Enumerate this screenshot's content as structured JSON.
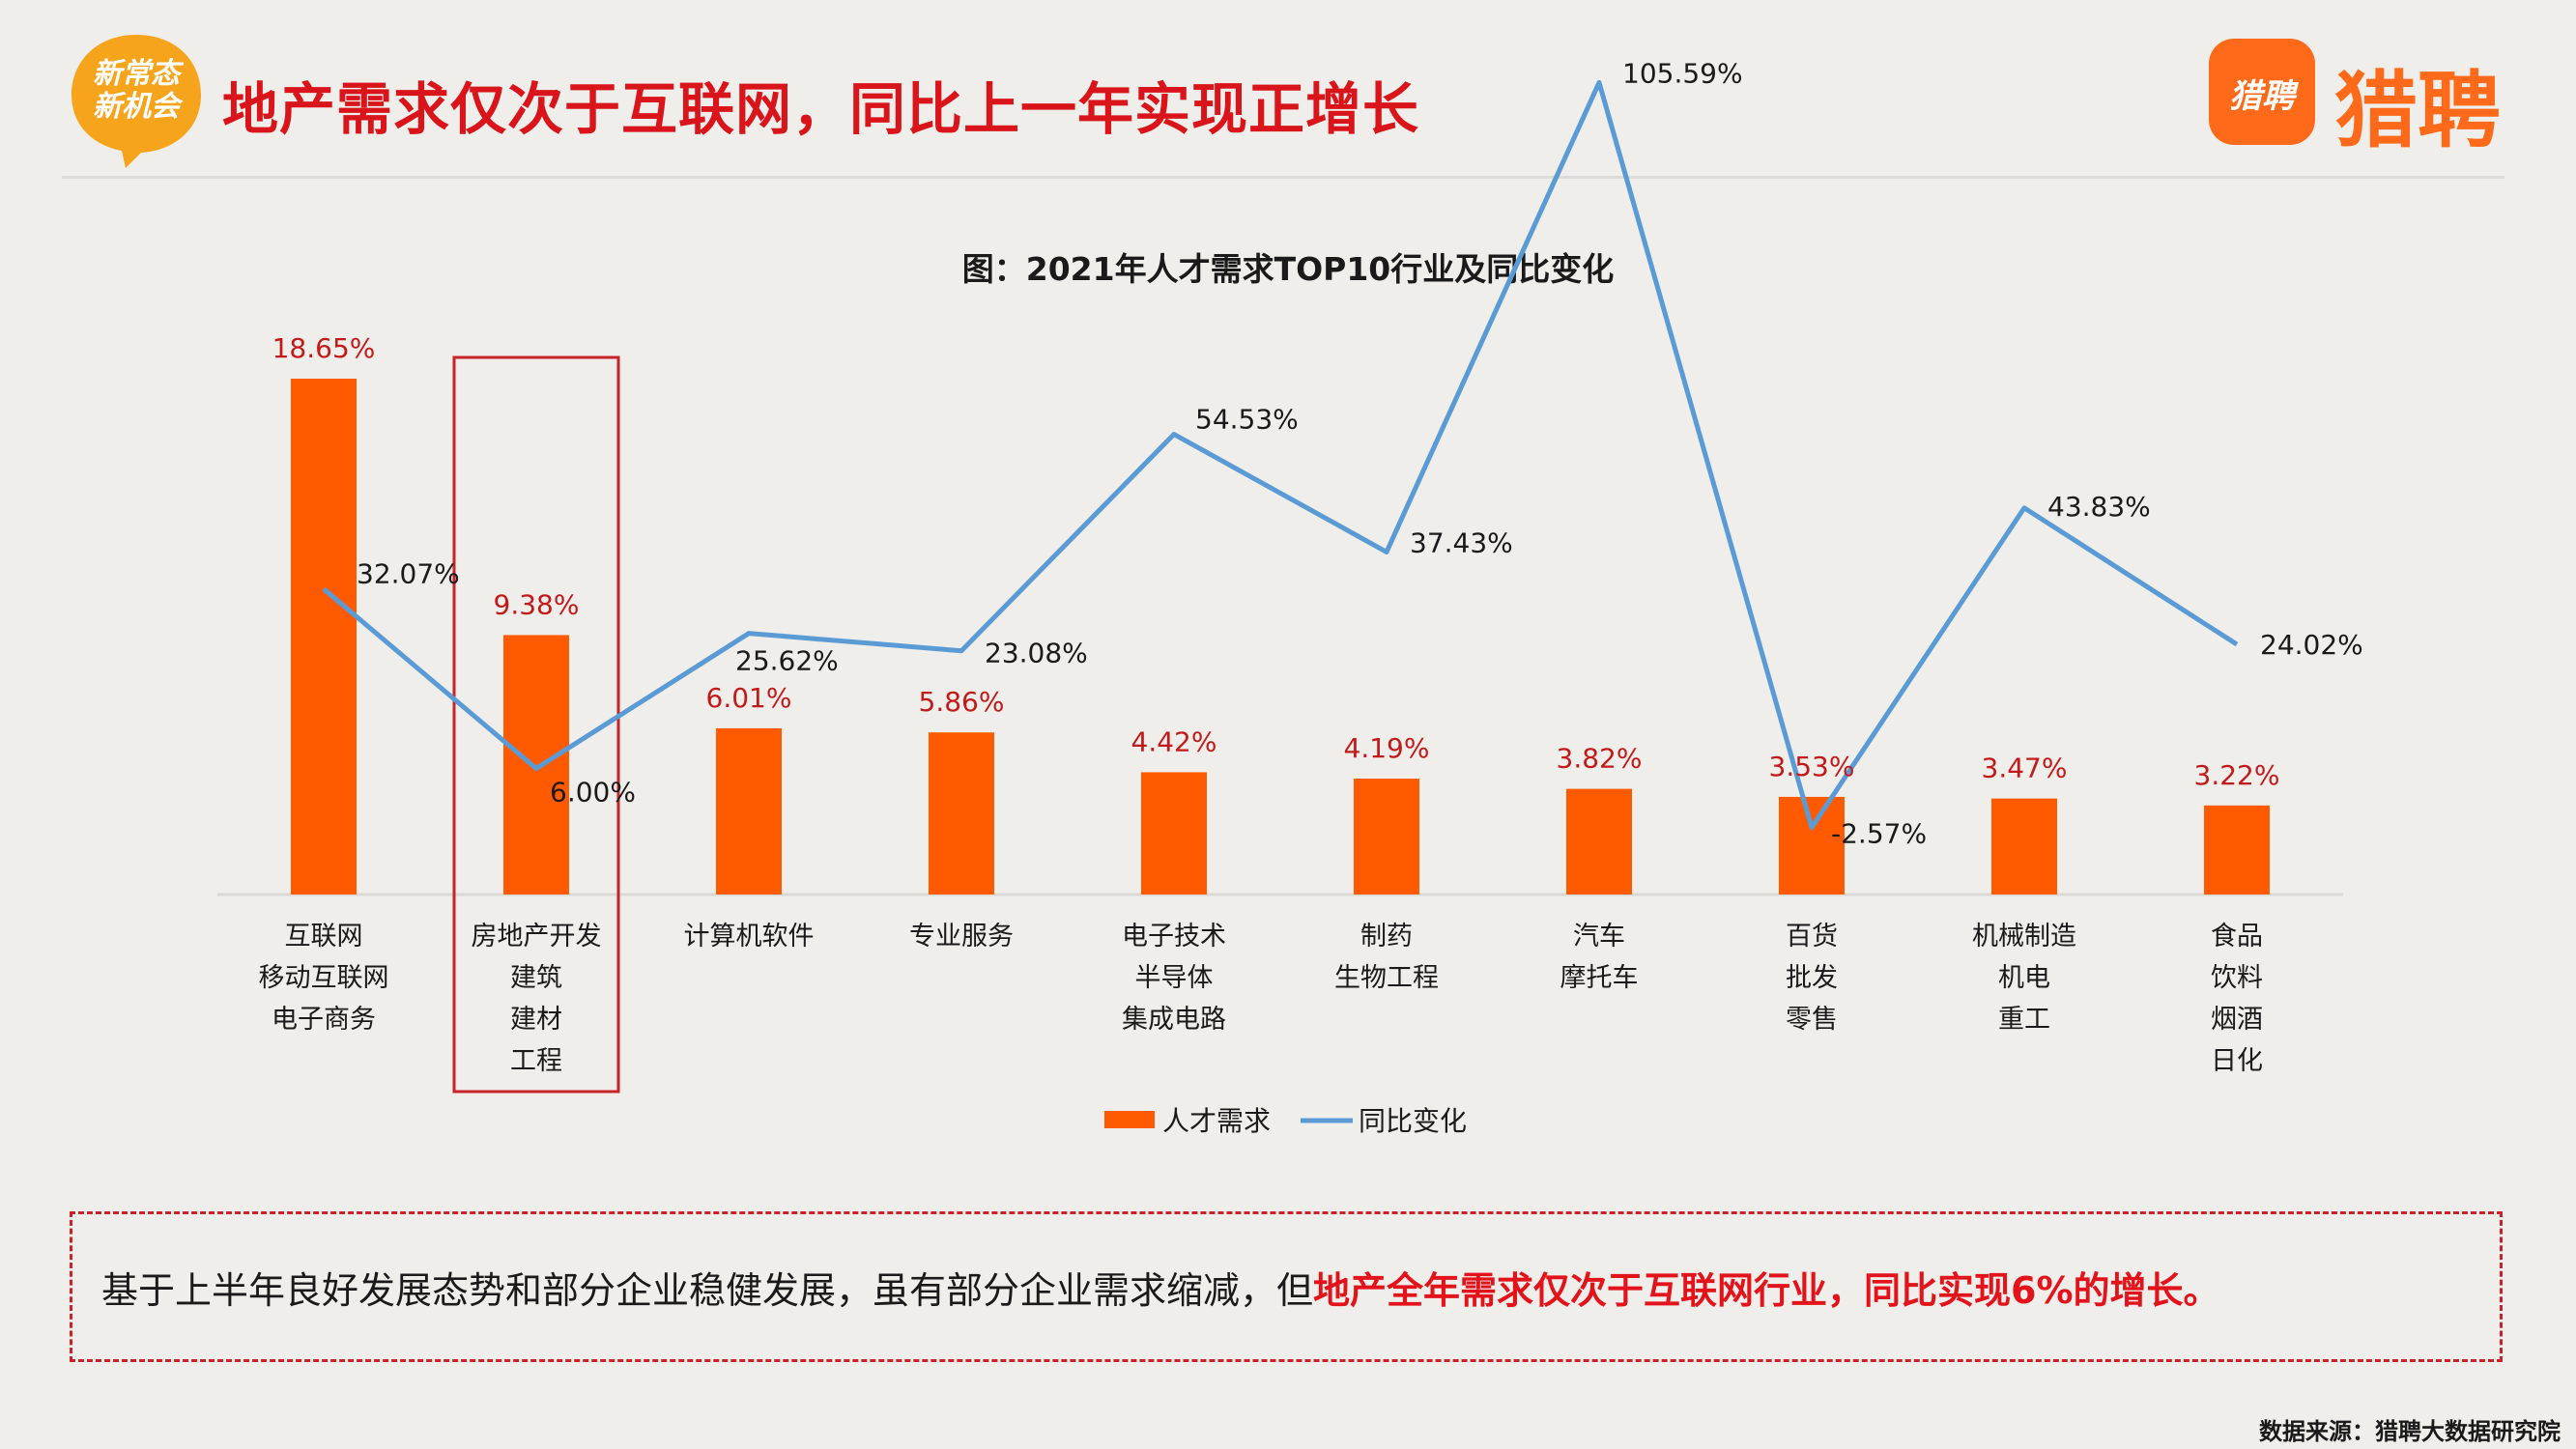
{
  "header": {
    "badge_line1": "新常态",
    "badge_line2": "新机会",
    "title": "地产需求仅次于互联网，同比上一年实现正增长",
    "logo_icon_text": "猎聘",
    "logo_text": "猎聘"
  },
  "colors": {
    "bar": "#ff5a00",
    "line": "#5b9bd5",
    "title_red": "#d9141b",
    "highlight_box": "#c8232a"
  },
  "chart_data": {
    "type": "bar",
    "title": "图：2021年人才需求TOP10行业及同比变化",
    "categories": [
      [
        "互联网",
        "移动互联网",
        "电子商务"
      ],
      [
        "房地产开发",
        "建筑",
        "建材",
        "工程"
      ],
      [
        "计算机软件"
      ],
      [
        "专业服务"
      ],
      [
        "电子技术",
        "半导体",
        "集成电路"
      ],
      [
        "制药",
        "生物工程"
      ],
      [
        "汽车",
        "摩托车"
      ],
      [
        "百货",
        "批发",
        "零售"
      ],
      [
        "机械制造",
        "机电",
        "重工"
      ],
      [
        "食品",
        "饮料",
        "烟酒",
        "日化"
      ]
    ],
    "series": [
      {
        "name": "人才需求",
        "kind": "bar",
        "values": [
          18.65,
          9.38,
          6.01,
          5.86,
          4.42,
          4.19,
          3.82,
          3.53,
          3.47,
          3.22
        ],
        "labels": [
          "18.65%",
          "9.38%",
          "6.01%",
          "5.86%",
          "4.42%",
          "4.19%",
          "3.82%",
          "3.53%",
          "3.47%",
          "3.22%"
        ]
      },
      {
        "name": "同比变化",
        "kind": "line",
        "values": [
          32.07,
          6.0,
          25.62,
          23.08,
          54.53,
          37.43,
          105.59,
          -2.57,
          43.83,
          24.02
        ],
        "labels": [
          "32.07%",
          "6.00%",
          "25.62%",
          "23.08%",
          "54.53%",
          "37.43%",
          "105.59%",
          "-2.57%",
          "43.83%",
          "24.02%"
        ]
      }
    ],
    "highlight_category_index": 1,
    "legend": "bottom"
  },
  "summary": {
    "text_plain": "基于上半年良好发展态势和部分企业稳健发展，虽有部分企业需求缩减，但",
    "text_highlight": "地产全年需求仅次于互联网行业，同比实现6%的增长。"
  },
  "source": "数据来源：猎聘大数据研究院"
}
